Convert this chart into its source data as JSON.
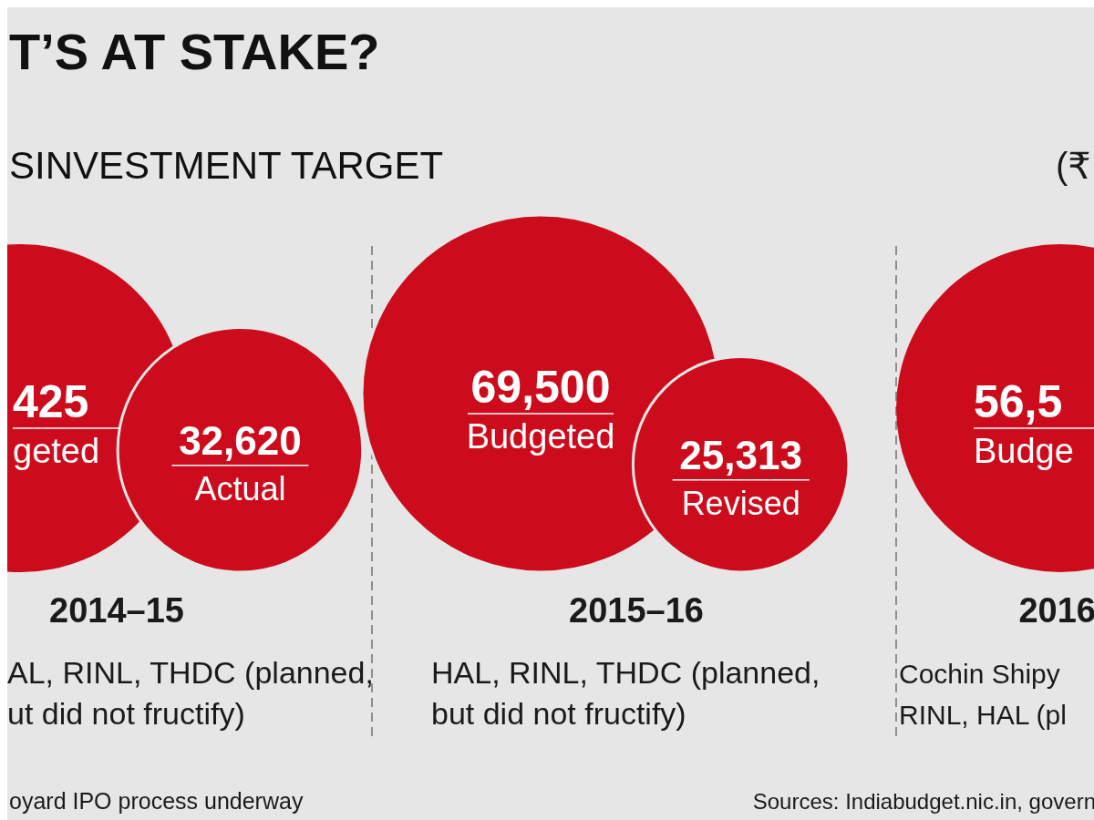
{
  "chart_data": {
    "type": "other",
    "title": "T’S AT STAKE?",
    "subtitle": "SINVESTMENT TARGET",
    "categories": [
      "2014–15",
      "2015–16",
      "2016"
    ],
    "series": [
      {
        "color": "#cc0c1c",
        "values": [
          null,
          69500,
          null
        ],
        "value_labels": [
          null,
          "69,500",
          null
        ]
      },
      {
        "color": "#cc0c1c",
        "values": [
          32620,
          25313,
          null
        ],
        "value_labels": [
          "32,620",
          "25,313",
          null
        ]
      }
    ],
    "annotations": [
      "425",
      "geted",
      "Actual",
      "Budgeted",
      "Revised",
      "56,5",
      "Budge",
      "AL, RINL, THDC (planned,\nut did not fructify)",
      "HAL, RINL, THDC (planned,\nbut did not fructify)",
      "Cochin Shipy\nRINL, HAL (pl",
      "(₹",
      "oyard IPO process underway",
      "Sources: Indiabudget.nic.in, govern"
    ]
  }
}
